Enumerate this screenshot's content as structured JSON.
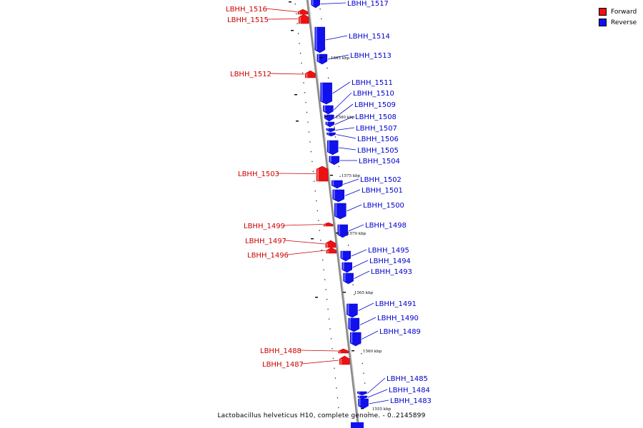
{
  "caption": "Lactobacillus helveticus H10, complete genome. - 0..2145899",
  "legend": [
    {
      "label": "Forward",
      "color": "#ee1111"
    },
    {
      "label": "Reverse",
      "color": "#1111ee"
    }
  ],
  "colors": {
    "forward": "#ee1111",
    "reverse": "#1111ee",
    "forward_label": "#cc0000",
    "reverse_label": "#0000cc",
    "backbone": "#8a8a8a"
  },
  "kbp_marks": [
    {
      "label": "1585 kbp"
    },
    {
      "label": "1580 kbp"
    },
    {
      "label": "1575 kbp"
    },
    {
      "label": "1570 kbp"
    },
    {
      "label": "1565 kbp"
    },
    {
      "label": "1560 kbp"
    },
    {
      "label": "1555 kbp"
    }
  ],
  "genes": [
    {
      "id": "LBHH_1517",
      "strand": "reverse"
    },
    {
      "id": "LBHH_1516",
      "strand": "forward"
    },
    {
      "id": "LBHH_1515",
      "strand": "forward"
    },
    {
      "id": "LBHH_1514",
      "strand": "reverse"
    },
    {
      "id": "LBHH_1513",
      "strand": "reverse"
    },
    {
      "id": "LBHH_1512",
      "strand": "forward"
    },
    {
      "id": "LBHH_1511",
      "strand": "reverse"
    },
    {
      "id": "LBHH_1510",
      "strand": "reverse"
    },
    {
      "id": "LBHH_1509",
      "strand": "reverse"
    },
    {
      "id": "LBHH_1508",
      "strand": "reverse"
    },
    {
      "id": "LBHH_1507",
      "strand": "reverse"
    },
    {
      "id": "LBHH_1506",
      "strand": "reverse"
    },
    {
      "id": "LBHH_1505",
      "strand": "reverse"
    },
    {
      "id": "LBHH_1504",
      "strand": "reverse"
    },
    {
      "id": "LBHH_1503",
      "strand": "forward"
    },
    {
      "id": "LBHH_1502",
      "strand": "reverse"
    },
    {
      "id": "LBHH_1501",
      "strand": "reverse"
    },
    {
      "id": "LBHH_1500",
      "strand": "reverse"
    },
    {
      "id": "LBHH_1499",
      "strand": "forward"
    },
    {
      "id": "LBHH_1498",
      "strand": "reverse"
    },
    {
      "id": "LBHH_1497",
      "strand": "forward"
    },
    {
      "id": "LBHH_1496",
      "strand": "forward"
    },
    {
      "id": "LBHH_1495",
      "strand": "reverse"
    },
    {
      "id": "LBHH_1494",
      "strand": "reverse"
    },
    {
      "id": "LBHH_1493",
      "strand": "reverse"
    },
    {
      "id": "LBHH_1491",
      "strand": "reverse"
    },
    {
      "id": "LBHH_1490",
      "strand": "reverse"
    },
    {
      "id": "LBHH_1489",
      "strand": "reverse"
    },
    {
      "id": "LBHH_1488",
      "strand": "forward"
    },
    {
      "id": "LBHH_1487",
      "strand": "forward"
    },
    {
      "id": "LBHH_1485",
      "strand": "reverse"
    },
    {
      "id": "LBHH_1484",
      "strand": "reverse"
    },
    {
      "id": "LBHH_1483",
      "strand": "reverse"
    }
  ]
}
